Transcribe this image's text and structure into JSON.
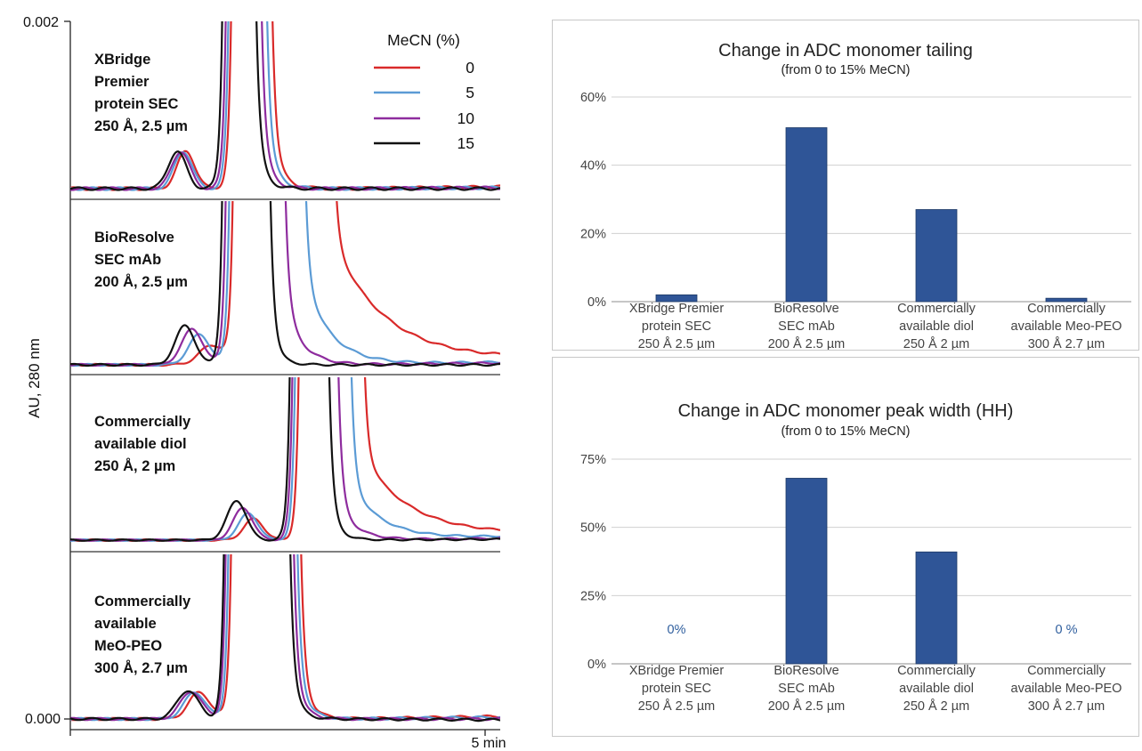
{
  "chromatograms": {
    "y_axis_label": "AU, 280 nm",
    "y_top_label": "0.002",
    "y_bottom_label": "0.000",
    "x_end_label": "5 min",
    "legend": {
      "title": "MeCN (%)",
      "entries": [
        {
          "label": "0",
          "color": "#d92a2a"
        },
        {
          "label": "5",
          "color": "#5b9bd5"
        },
        {
          "label": "10",
          "color": "#8e2c9e"
        },
        {
          "label": "15",
          "color": "#111111"
        }
      ]
    },
    "panels": [
      {
        "label_lines": [
          "XBridge",
          "Premier",
          "protein SEC",
          "250 Å, 2.5 µm"
        ]
      },
      {
        "label_lines": [
          "BioResolve",
          "SEC mAb",
          "200 Å, 2.5 µm"
        ]
      },
      {
        "label_lines": [
          "Commercially",
          "available diol",
          "250 Å, 2 µm"
        ]
      },
      {
        "label_lines": [
          "Commercially",
          "available",
          "MeO-PEO",
          "300 Å, 2.7 µm"
        ]
      }
    ]
  },
  "chart_data": [
    {
      "type": "bar",
      "title": "Change in ADC monomer tailing",
      "subtitle": "(from 0 to 15% MeCN)",
      "categories": [
        [
          "XBridge Premier",
          "protein SEC",
          "250 Å 2.5 µm"
        ],
        [
          "BioResolve",
          "SEC mAb",
          "200 Å 2.5 µm"
        ],
        [
          "Commercially",
          "available diol",
          "250 Å 2 µm"
        ],
        [
          "Commercially",
          "available Meo-PEO",
          "300 Å 2.7 µm"
        ]
      ],
      "values": [
        2,
        51,
        27,
        1
      ],
      "data_labels": [
        "",
        "",
        "",
        ""
      ],
      "ylim": [
        0,
        60
      ],
      "yticks": [
        0,
        20,
        40,
        60
      ],
      "ytick_labels": [
        "0%",
        "20%",
        "40%",
        "60%"
      ],
      "grid": true,
      "bar_color": "#2f5597"
    },
    {
      "type": "bar",
      "title": "Change in ADC monomer peak width (HH)",
      "subtitle": "(from 0 to 15% MeCN)",
      "categories": [
        [
          "XBridge Premier",
          "protein SEC",
          "250 Å 2.5 µm"
        ],
        [
          "BioResolve",
          "SEC mAb",
          "200 Å 2.5 µm"
        ],
        [
          "Commercially",
          "available diol",
          "250 Å 2 µm"
        ],
        [
          "Commercially",
          "available Meo-PEO",
          "300 Å 2.7 µm"
        ]
      ],
      "values": [
        0,
        68,
        41,
        0
      ],
      "data_labels": [
        "0%",
        "",
        "",
        "0 %"
      ],
      "ylim": [
        0,
        75
      ],
      "yticks": [
        0,
        25,
        50,
        75
      ],
      "ytick_labels": [
        "0%",
        "25%",
        "50%",
        "75%"
      ],
      "grid": true,
      "bar_color": "#2f5597"
    }
  ]
}
